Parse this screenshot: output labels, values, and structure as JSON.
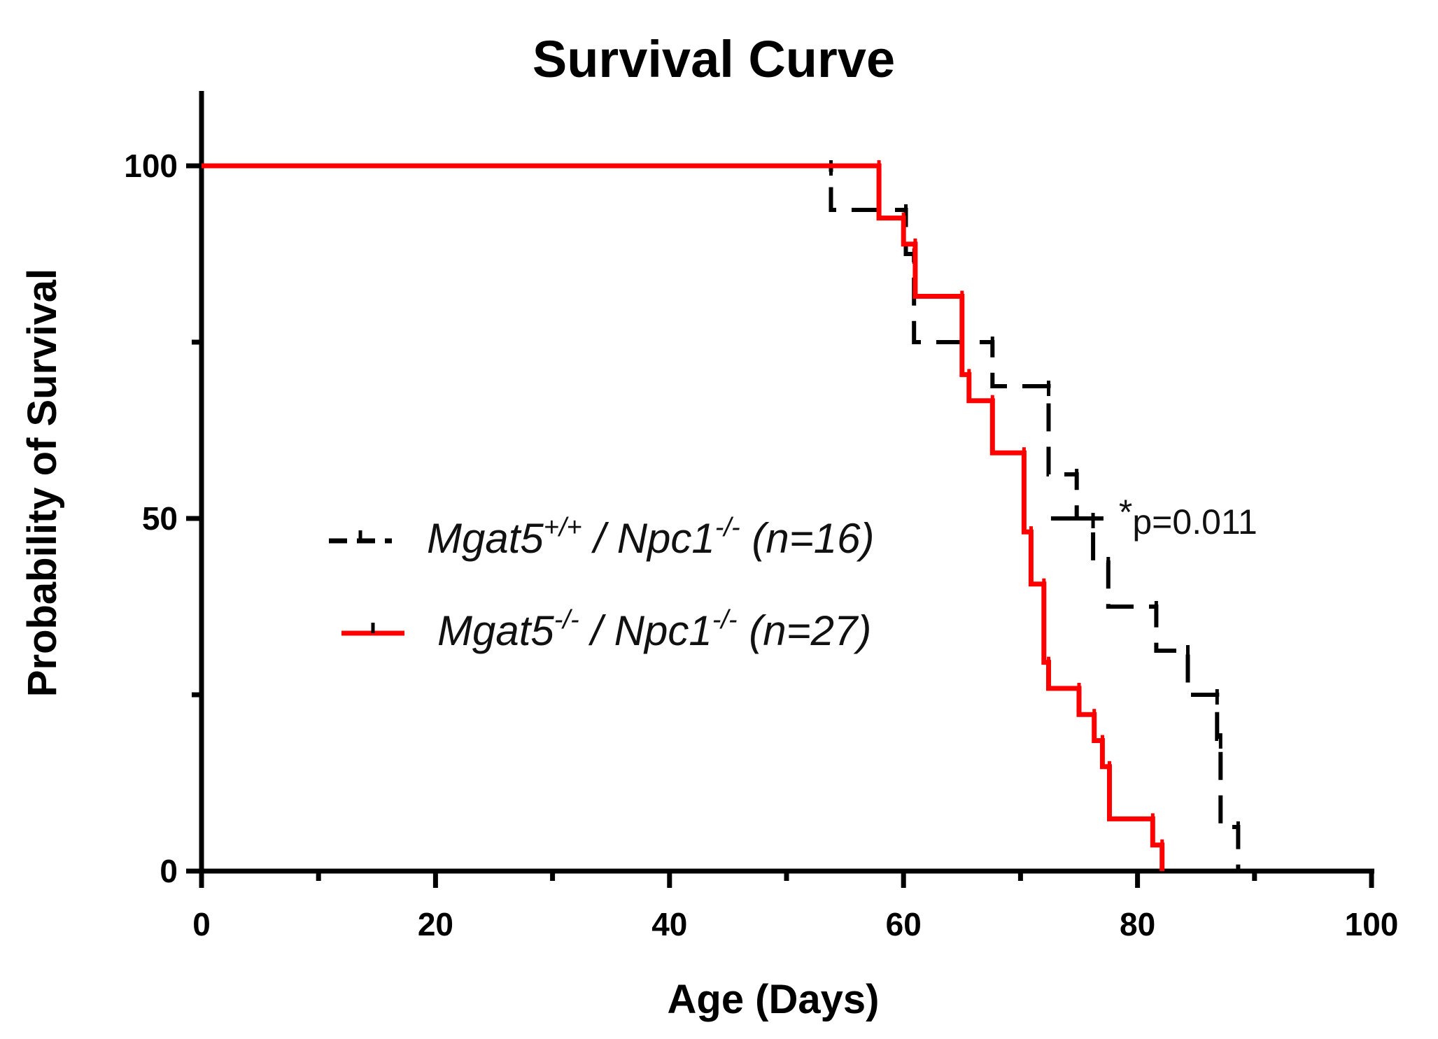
{
  "chart_data": {
    "type": "line",
    "subtype": "kaplan-meier step",
    "title": "Survival Curve",
    "xlabel": "Age (Days)",
    "ylabel": "Probability of Survival",
    "xlim": [
      0,
      100
    ],
    "ylim": [
      0,
      110
    ],
    "x_ticks": [
      0,
      20,
      40,
      60,
      80,
      100
    ],
    "x_tick_labels": [
      "0",
      "20",
      "40",
      "60",
      "80",
      "100"
    ],
    "y_ticks": [
      0,
      50,
      100
    ],
    "y_tick_labels": [
      "0",
      "50",
      "100"
    ],
    "y_minor_ticks": [
      25,
      75
    ],
    "x_minor_ticks": [
      10,
      30,
      50,
      70,
      90
    ],
    "grid": false,
    "legend_position": "center-left",
    "annotation": {
      "prefix": "*",
      "text": "p=0.011",
      "x": 73.5,
      "y": 50
    },
    "series": [
      {
        "name": "Mgat5+/+ / Npc1-/- (n=16)",
        "legend_parts": [
          "Mgat5",
          "+/+",
          " / Npc1",
          "-/-",
          " (n=16)"
        ],
        "color": "#000000",
        "style": "dashed",
        "steps": [
          [
            0,
            100
          ],
          [
            53.8,
            100
          ],
          [
            53.8,
            93.75
          ],
          [
            60.2,
            93.75
          ],
          [
            60.2,
            87.5
          ],
          [
            60.9,
            87.5
          ],
          [
            60.9,
            75
          ],
          [
            67.6,
            75
          ],
          [
            67.6,
            68.75
          ],
          [
            72.4,
            68.75
          ],
          [
            72.4,
            56.25
          ],
          [
            74.8,
            56.25
          ],
          [
            74.8,
            50
          ],
          [
            76.2,
            50
          ],
          [
            76.2,
            43.75
          ],
          [
            77.5,
            43.75
          ],
          [
            77.5,
            37.5
          ],
          [
            81.6,
            37.5
          ],
          [
            81.6,
            31.25
          ],
          [
            84.3,
            31.25
          ],
          [
            84.3,
            25
          ],
          [
            86.8,
            25
          ],
          [
            86.8,
            18.75
          ],
          [
            87.1,
            18.75
          ],
          [
            87.1,
            6.25
          ],
          [
            88.6,
            6.25
          ],
          [
            88.6,
            0
          ]
        ]
      },
      {
        "name": "Mgat5-/- / Npc1-/- (n=27)",
        "legend_parts": [
          "Mgat5",
          "-/-",
          " / Npc1",
          "-/-",
          " (n=27)"
        ],
        "color": "#ff0000",
        "style": "solid",
        "steps": [
          [
            0,
            100
          ],
          [
            57.9,
            100
          ],
          [
            57.9,
            92.6
          ],
          [
            60.0,
            92.6
          ],
          [
            60.0,
            88.9
          ],
          [
            61.0,
            88.9
          ],
          [
            61.0,
            81.5
          ],
          [
            65.0,
            81.5
          ],
          [
            65.0,
            70.4
          ],
          [
            65.6,
            70.4
          ],
          [
            65.6,
            66.7
          ],
          [
            67.6,
            66.7
          ],
          [
            67.6,
            59.3
          ],
          [
            70.3,
            59.3
          ],
          [
            70.3,
            48.1
          ],
          [
            70.9,
            48.1
          ],
          [
            70.9,
            40.7
          ],
          [
            72.0,
            40.7
          ],
          [
            72.0,
            29.6
          ],
          [
            72.4,
            29.6
          ],
          [
            72.4,
            25.9
          ],
          [
            75.0,
            25.9
          ],
          [
            75.0,
            22.2
          ],
          [
            76.3,
            22.2
          ],
          [
            76.3,
            18.5
          ],
          [
            77.0,
            18.5
          ],
          [
            77.0,
            14.8
          ],
          [
            77.6,
            14.8
          ],
          [
            77.6,
            7.4
          ],
          [
            81.3,
            7.4
          ],
          [
            81.3,
            3.7
          ],
          [
            82.1,
            3.7
          ],
          [
            82.1,
            0
          ]
        ]
      }
    ]
  }
}
